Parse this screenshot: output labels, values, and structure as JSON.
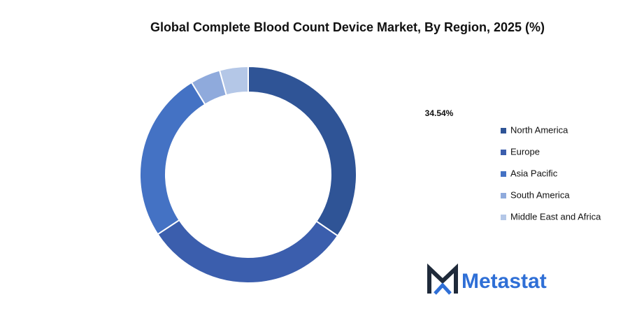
{
  "chart_data": {
    "type": "donut",
    "title": "Global Complete Blood Count Device Market, By Region, 2025 (%)",
    "categories": [
      "North America",
      "Europe",
      "Asia Pacific",
      "South America",
      "Middle East and Africa"
    ],
    "values": [
      34.54,
      31.2,
      25.5,
      4.5,
      4.26
    ],
    "value_labels": [
      "34.54%",
      null,
      null,
      null,
      null
    ],
    "colors": [
      "#2f5496",
      "#3b5ead",
      "#4472c4",
      "#8faadc",
      "#b4c7e7"
    ],
    "legend": "right"
  },
  "logo": "Metastat"
}
